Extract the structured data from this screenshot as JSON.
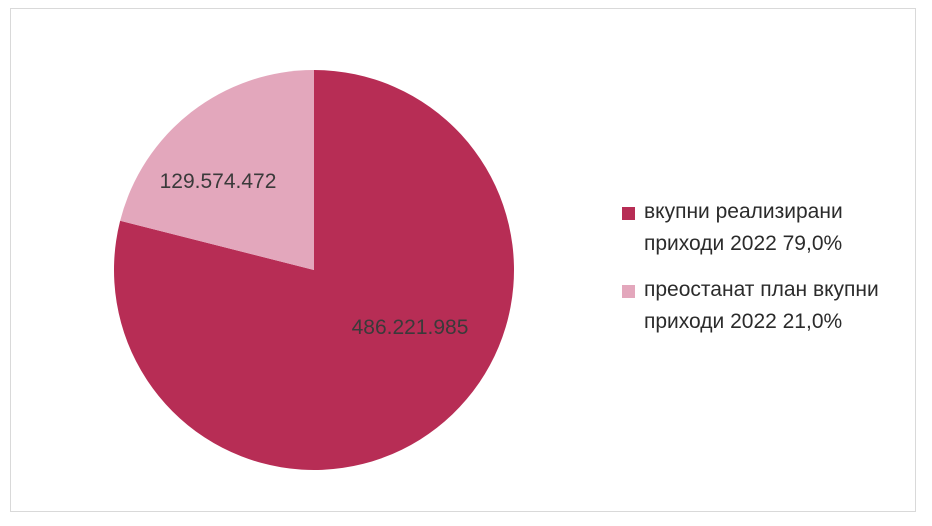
{
  "chart_data": {
    "type": "pie",
    "title": "",
    "slices": [
      {
        "label": "вкупни реализирани приходи 2022 79,0%",
        "value": 486221985,
        "value_label": "486.221.985",
        "percent": 79.0,
        "color": "#b72d55"
      },
      {
        "label": "преостанат план вкупни приходи 2022 21,0%",
        "value": 129574472,
        "value_label": "129.574.472",
        "percent": 21.0,
        "color": "#e3a7bc"
      }
    ],
    "legend_placement": "right"
  }
}
